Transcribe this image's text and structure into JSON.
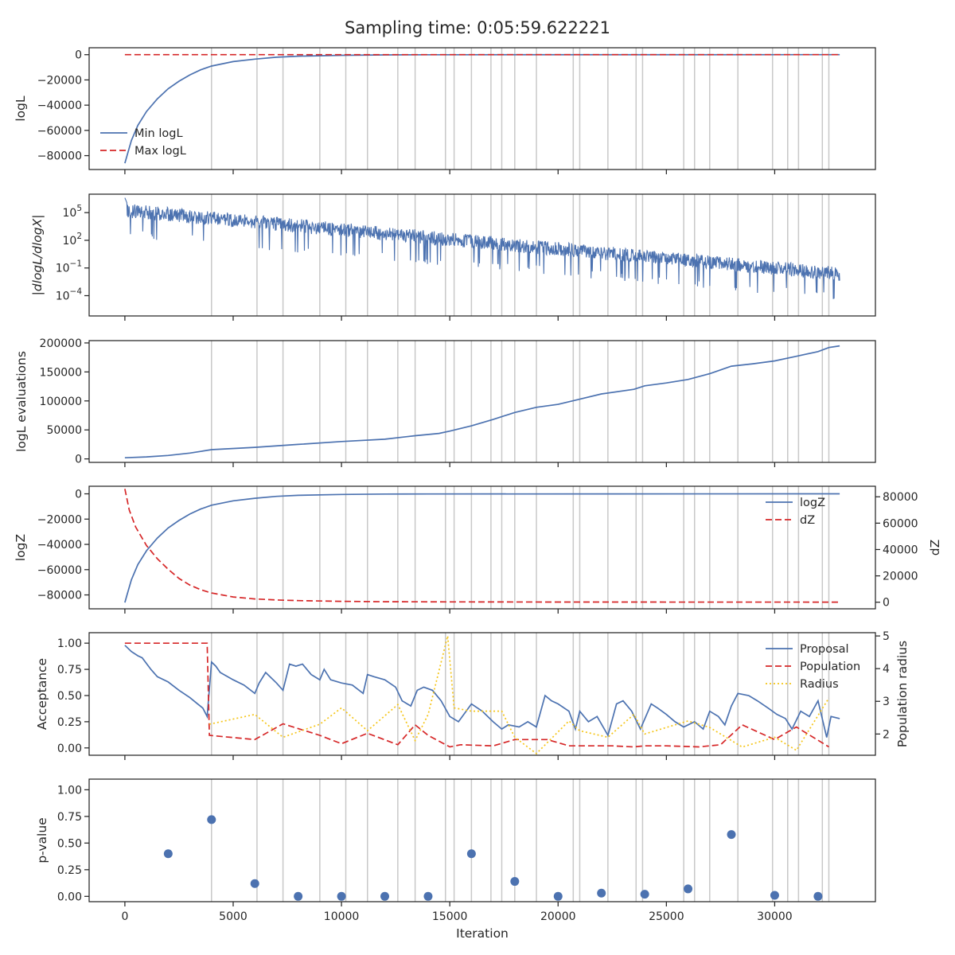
{
  "figure": {
    "title": "Sampling time: 0:05:59.622221"
  },
  "colors": {
    "blue": "#4c72b0",
    "red": "#d62728",
    "gold": "#f5c518",
    "vline": "#c8c8c8"
  },
  "chart_data": [
    {
      "id": "logl",
      "type": "line",
      "ylabel": "logL",
      "xlim": [
        -1650,
        34650
      ],
      "ylim": [
        -91000,
        5500
      ],
      "yticks": [
        {
          "v": 0,
          "label": "0"
        },
        {
          "v": -20000,
          "label": "−20000"
        },
        {
          "v": -40000,
          "label": "−40000"
        },
        {
          "v": -60000,
          "label": "−60000"
        },
        {
          "v": -80000,
          "label": "−80000"
        }
      ],
      "legend": {
        "position": "lower-left",
        "entries": [
          "Min logL",
          "Max logL"
        ]
      },
      "series": [
        {
          "name": "Min logL",
          "color": "blue",
          "dash": "solid",
          "x": [
            0,
            100,
            300,
            600,
            1000,
            1500,
            2000,
            2500,
            3000,
            3500,
            4000,
            5000,
            6000,
            7000,
            8000,
            10000,
            12000,
            14000,
            33000
          ],
          "y": [
            -86000,
            -80000,
            -68000,
            -56000,
            -45000,
            -35000,
            -27000,
            -21000,
            -16000,
            -12000,
            -9000,
            -5500,
            -3500,
            -2000,
            -1200,
            -500,
            -200,
            -80,
            -10
          ]
        },
        {
          "name": "Max logL",
          "color": "red",
          "dash": "dashed",
          "x": [
            0,
            33000
          ],
          "y": [
            0,
            0
          ]
        }
      ]
    },
    {
      "id": "dlogl",
      "type": "line",
      "ylabel": "|dlogL/dlogX|",
      "yscale": "log",
      "xlim": [
        -1650,
        34650
      ],
      "ylim_log10": [
        -6.2,
        7.0
      ],
      "yticks": [
        {
          "v": 5,
          "base": "10",
          "exp": "5"
        },
        {
          "v": 2,
          "base": "10",
          "exp": "2"
        },
        {
          "v": -1,
          "base": "10",
          "exp": "−1"
        },
        {
          "v": -4,
          "base": "10",
          "exp": "−4"
        }
      ],
      "series": [
        {
          "name": "",
          "color": "blue",
          "dash": "solid",
          "band_top_log10": [
            [
              0,
              6.0
            ],
            [
              33000,
              -0.9
            ]
          ],
          "band_bottom_log10": [
            [
              0,
              3.2
            ],
            [
              33000,
              -3.6
            ]
          ]
        }
      ]
    },
    {
      "id": "evals",
      "type": "line",
      "ylabel": "logL evaluations",
      "xlim": [
        -1650,
        34650
      ],
      "ylim": [
        -6000,
        204000
      ],
      "yticks": [
        {
          "v": 0,
          "label": "0"
        },
        {
          "v": 50000,
          "label": "50000"
        },
        {
          "v": 100000,
          "label": "100000"
        },
        {
          "v": 150000,
          "label": "150000"
        },
        {
          "v": 200000,
          "label": "200000"
        }
      ],
      "series": [
        {
          "name": "",
          "color": "blue",
          "dash": "solid",
          "x": [
            0,
            1000,
            2000,
            3000,
            3500,
            4000,
            6000,
            8000,
            10000,
            12000,
            13400,
            14500,
            15000,
            16000,
            17000,
            18000,
            19000,
            20000,
            21000,
            22000,
            23500,
            24000,
            25000,
            26000,
            27000,
            28000,
            29000,
            30000,
            31000,
            32000,
            32500,
            33000
          ],
          "y": [
            2000,
            3500,
            6000,
            10000,
            13000,
            16000,
            20000,
            25000,
            30000,
            34000,
            40000,
            44000,
            48000,
            57000,
            68000,
            80000,
            89000,
            94000,
            103000,
            112000,
            120000,
            126000,
            131000,
            137000,
            147000,
            160000,
            164000,
            169000,
            177000,
            185000,
            192000,
            195000
          ]
        }
      ]
    },
    {
      "id": "logz",
      "type": "line",
      "ylabel": "logZ",
      "ylabel2": "dZ",
      "xlim": [
        -1650,
        34650
      ],
      "ylim": [
        -91000,
        6000
      ],
      "y2lim": [
        -5000,
        88000
      ],
      "yticks": [
        {
          "v": 0,
          "label": "0"
        },
        {
          "v": -20000,
          "label": "−20000"
        },
        {
          "v": -40000,
          "label": "−40000"
        },
        {
          "v": -60000,
          "label": "−60000"
        },
        {
          "v": -80000,
          "label": "−80000"
        }
      ],
      "y2ticks": [
        {
          "v": 80000,
          "label": "80000"
        },
        {
          "v": 60000,
          "label": "60000"
        },
        {
          "v": 40000,
          "label": "40000"
        },
        {
          "v": 20000,
          "label": "20000"
        },
        {
          "v": 0,
          "label": "0"
        }
      ],
      "legend": {
        "position": "upper-right",
        "entries": [
          "logZ",
          "dZ"
        ]
      },
      "series": [
        {
          "name": "logZ",
          "color": "blue",
          "dash": "solid",
          "axis": "left",
          "x": [
            0,
            100,
            300,
            600,
            1000,
            1500,
            2000,
            2500,
            3000,
            3500,
            4000,
            5000,
            6000,
            7000,
            8000,
            10000,
            12000,
            14000,
            33000
          ],
          "y": [
            -86000,
            -80000,
            -68000,
            -56000,
            -45000,
            -35000,
            -27000,
            -21000,
            -16000,
            -12000,
            -9000,
            -5500,
            -3500,
            -2000,
            -1200,
            -500,
            -200,
            -80,
            -10
          ]
        },
        {
          "name": "dZ",
          "color": "red",
          "dash": "dashed",
          "axis": "right",
          "x": [
            0,
            200,
            500,
            1000,
            1500,
            2000,
            2500,
            3000,
            3500,
            4000,
            5000,
            6000,
            7000,
            8000,
            10000,
            12000,
            15000,
            20000,
            33000
          ],
          "y": [
            86000,
            70000,
            57000,
            43000,
            33000,
            25000,
            18000,
            13000,
            9500,
            7000,
            4000,
            2500,
            1700,
            1200,
            700,
            400,
            250,
            150,
            100
          ]
        }
      ]
    },
    {
      "id": "accept",
      "type": "line",
      "ylabel": "Acceptance",
      "ylabel2": "Population radius",
      "xlim": [
        -1650,
        34650
      ],
      "ylim": [
        -0.07,
        1.1
      ],
      "y2lim": [
        1.35,
        5.1
      ],
      "yticks": [
        {
          "v": 1.0,
          "label": "1.00"
        },
        {
          "v": 0.75,
          "label": "0.75"
        },
        {
          "v": 0.5,
          "label": "0.50"
        },
        {
          "v": 0.25,
          "label": "0.25"
        },
        {
          "v": 0.0,
          "label": "0.00"
        }
      ],
      "y2ticks": [
        {
          "v": 5,
          "label": "5"
        },
        {
          "v": 4,
          "label": "4"
        },
        {
          "v": 3,
          "label": "3"
        },
        {
          "v": 2,
          "label": "2"
        }
      ],
      "legend": {
        "position": "upper-right",
        "entries": [
          "Proposal",
          "Population",
          "Radius"
        ]
      },
      "series": [
        {
          "name": "Proposal",
          "color": "blue",
          "dash": "solid",
          "axis": "left",
          "x": [
            0,
            300,
            600,
            800,
            1200,
            1500,
            2000,
            2500,
            3000,
            3300,
            3600,
            3800,
            4000,
            4200,
            4400,
            5000,
            5500,
            6000,
            6200,
            6500,
            7000,
            7300,
            7600,
            7900,
            8200,
            8600,
            9000,
            9200,
            9500,
            10000,
            10500,
            11000,
            11200,
            11500,
            12000,
            12500,
            12800,
            13200,
            13500,
            13800,
            14200,
            14600,
            15000,
            15400,
            16000,
            16500,
            17000,
            17400,
            17700,
            18200,
            18600,
            19000,
            19400,
            19700,
            20000,
            20500,
            20800,
            21000,
            21400,
            21800,
            22300,
            22700,
            23000,
            23400,
            23800,
            24300,
            24600,
            25000,
            25400,
            25800,
            26300,
            26700,
            27000,
            27400,
            27700,
            28000,
            28300,
            28800,
            29200,
            29700,
            30100,
            30500,
            30800,
            31200,
            31600,
            32000,
            32400,
            32600,
            33000
          ],
          "y": [
            0.98,
            0.92,
            0.88,
            0.86,
            0.75,
            0.68,
            0.63,
            0.55,
            0.48,
            0.43,
            0.38,
            0.3,
            0.82,
            0.78,
            0.72,
            0.65,
            0.6,
            0.52,
            0.62,
            0.72,
            0.62,
            0.55,
            0.8,
            0.78,
            0.8,
            0.7,
            0.65,
            0.75,
            0.65,
            0.62,
            0.6,
            0.52,
            0.7,
            0.68,
            0.65,
            0.58,
            0.45,
            0.4,
            0.55,
            0.58,
            0.55,
            0.45,
            0.3,
            0.25,
            0.42,
            0.35,
            0.25,
            0.18,
            0.22,
            0.2,
            0.25,
            0.2,
            0.5,
            0.45,
            0.42,
            0.35,
            0.18,
            0.35,
            0.25,
            0.3,
            0.12,
            0.42,
            0.45,
            0.35,
            0.18,
            0.42,
            0.38,
            0.32,
            0.25,
            0.2,
            0.25,
            0.18,
            0.35,
            0.3,
            0.22,
            0.4,
            0.52,
            0.5,
            0.45,
            0.38,
            0.32,
            0.28,
            0.18,
            0.35,
            0.3,
            0.45,
            0.1,
            0.3,
            0.28
          ]
        },
        {
          "name": "Population",
          "color": "red",
          "dash": "dashed",
          "axis": "left",
          "x": [
            0,
            3800,
            3900,
            6000,
            7300,
            9000,
            10000,
            11200,
            12600,
            13400,
            14000,
            15000,
            15500,
            17000,
            18000,
            18500,
            19500,
            20500,
            21000,
            22500,
            23500,
            24000,
            25000,
            26500,
            27500,
            28500,
            30000,
            31000,
            32500
          ],
          "y": [
            1.0,
            1.0,
            0.12,
            0.08,
            0.23,
            0.12,
            0.04,
            0.14,
            0.03,
            0.22,
            0.12,
            0.01,
            0.03,
            0.02,
            0.08,
            0.08,
            0.08,
            0.02,
            0.02,
            0.02,
            0.01,
            0.02,
            0.02,
            0.01,
            0.03,
            0.22,
            0.08,
            0.2,
            0.01
          ]
        },
        {
          "name": "Radius",
          "color": "gold",
          "dash": "dotted",
          "axis": "right",
          "x": [
            0,
            3800,
            3900,
            6000,
            7300,
            9000,
            10000,
            11200,
            12600,
            13400,
            14000,
            14900,
            15200,
            16000,
            17400,
            18000,
            19000,
            20500,
            21000,
            22300,
            23500,
            24000,
            26000,
            27000,
            28500,
            30000,
            31000,
            32500
          ],
          "y": [
            null,
            null,
            2.3,
            2.6,
            1.9,
            2.3,
            2.8,
            2.1,
            2.9,
            1.8,
            2.6,
            5.0,
            2.8,
            2.7,
            2.7,
            1.9,
            1.4,
            2.4,
            2.1,
            1.9,
            2.6,
            2.0,
            2.4,
            2.2,
            1.6,
            1.9,
            1.5,
            3.1
          ]
        }
      ]
    },
    {
      "id": "pvalue",
      "type": "scatter",
      "ylabel": "p-value",
      "xlabel": "Iteration",
      "xlim": [
        -1650,
        34650
      ],
      "ylim": [
        -0.05,
        1.1
      ],
      "yticks": [
        {
          "v": 1.0,
          "label": "1.00"
        },
        {
          "v": 0.75,
          "label": "0.75"
        },
        {
          "v": 0.5,
          "label": "0.50"
        },
        {
          "v": 0.25,
          "label": "0.25"
        },
        {
          "v": 0.0,
          "label": "0.00"
        }
      ],
      "xticks": [
        {
          "v": 0,
          "label": "0"
        },
        {
          "v": 5000,
          "label": "5000"
        },
        {
          "v": 10000,
          "label": "10000"
        },
        {
          "v": 15000,
          "label": "15000"
        },
        {
          "v": 20000,
          "label": "20000"
        },
        {
          "v": 25000,
          "label": "25000"
        },
        {
          "v": 30000,
          "label": "30000"
        }
      ],
      "series": [
        {
          "name": "",
          "color": "blue",
          "x": [
            2000,
            4000,
            6000,
            8000,
            10000,
            12000,
            14000,
            16000,
            18000,
            20000,
            22000,
            24000,
            26000,
            28000,
            30000,
            32000
          ],
          "y": [
            0.4,
            0.72,
            0.12,
            0.0,
            0.0,
            0.0,
            0.0,
            0.4,
            0.14,
            0.0,
            0.03,
            0.02,
            0.07,
            0.58,
            0.01,
            0.0
          ]
        }
      ]
    }
  ],
  "vlines": [
    4000,
    6100,
    7300,
    9000,
    10200,
    11200,
    12600,
    13400,
    14800,
    15200,
    16000,
    16900,
    17400,
    18000,
    19000,
    20700,
    21000,
    22300,
    23600,
    23900,
    25800,
    26300,
    27000,
    28300,
    29900,
    30600,
    31100,
    32200,
    32500
  ]
}
